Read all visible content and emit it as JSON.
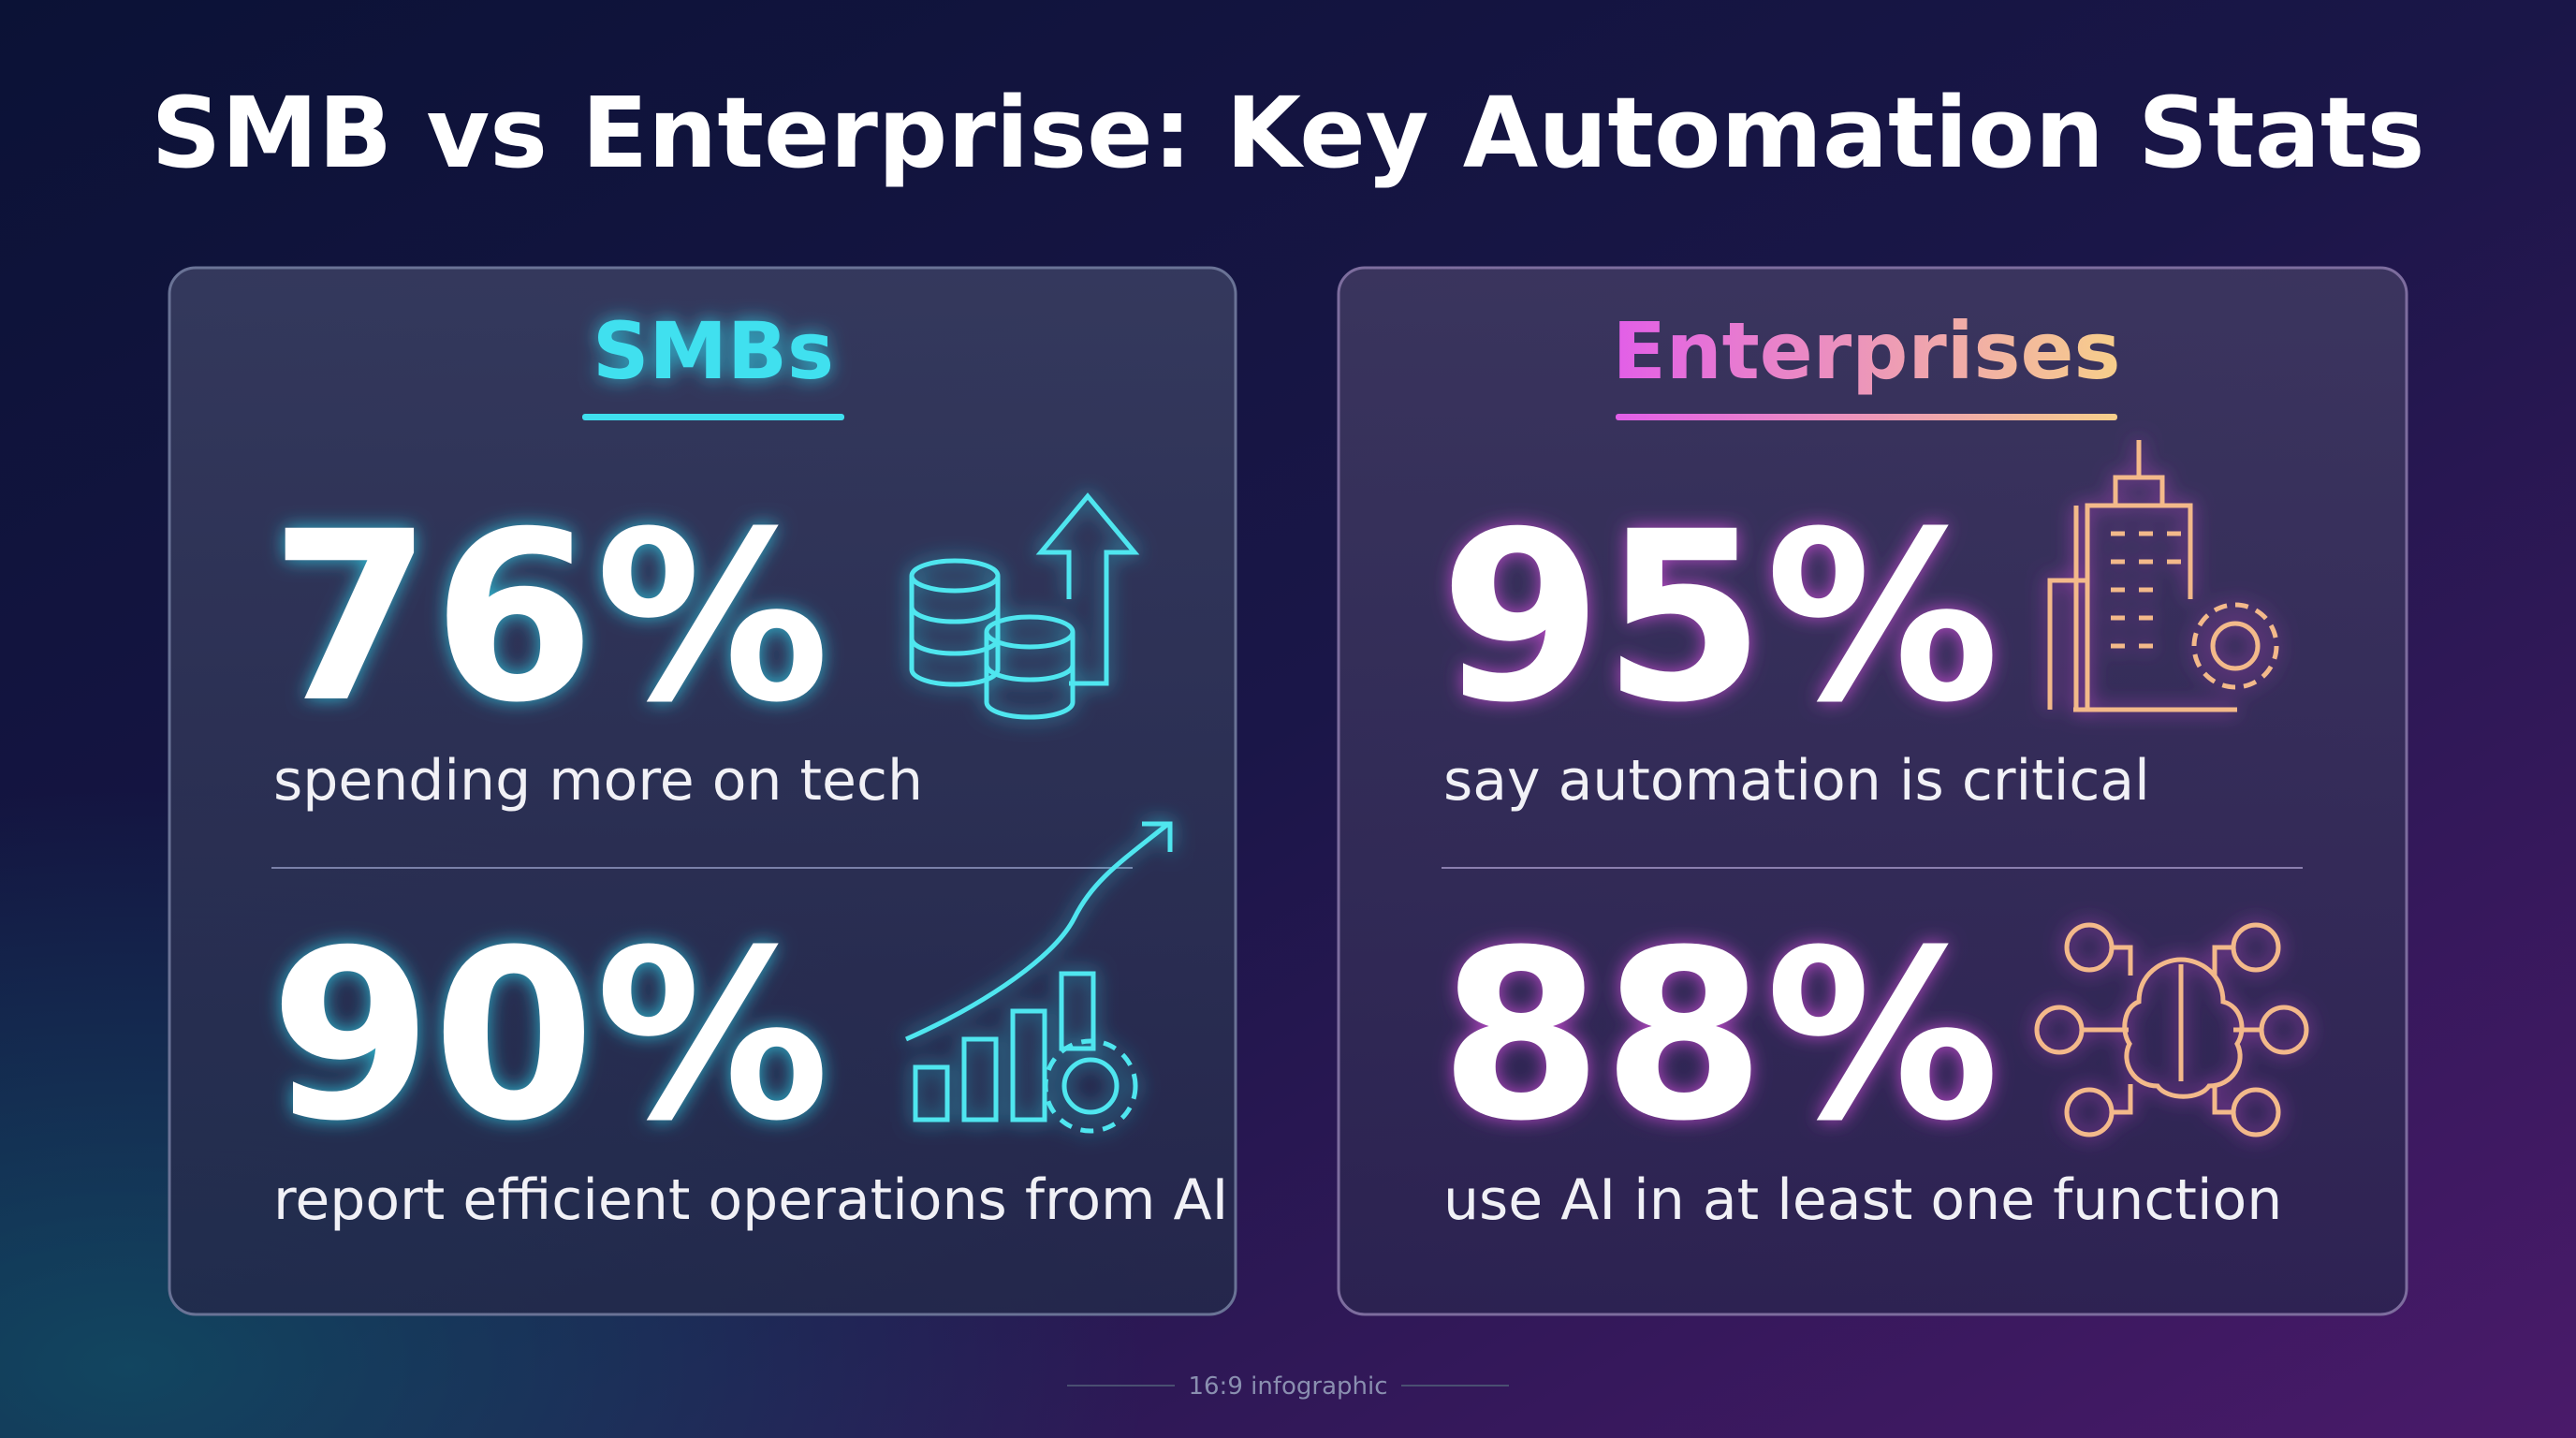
{
  "header": {
    "title": "SMB vs Enterprise: Key Automation Stats"
  },
  "panels": [
    {
      "title": "SMBs",
      "stats": [
        {
          "value": "76%",
          "text": "spending more on tech"
        },
        {
          "value": "90%",
          "text": "report efficient operations from AI"
        }
      ]
    },
    {
      "title": "Enterprises",
      "stats": [
        {
          "value": "95%",
          "text": "say automation is critical"
        },
        {
          "value": "88%",
          "text": "use AI in at least one function"
        }
      ]
    }
  ],
  "footer": {
    "text": "16:9 infographic"
  }
}
